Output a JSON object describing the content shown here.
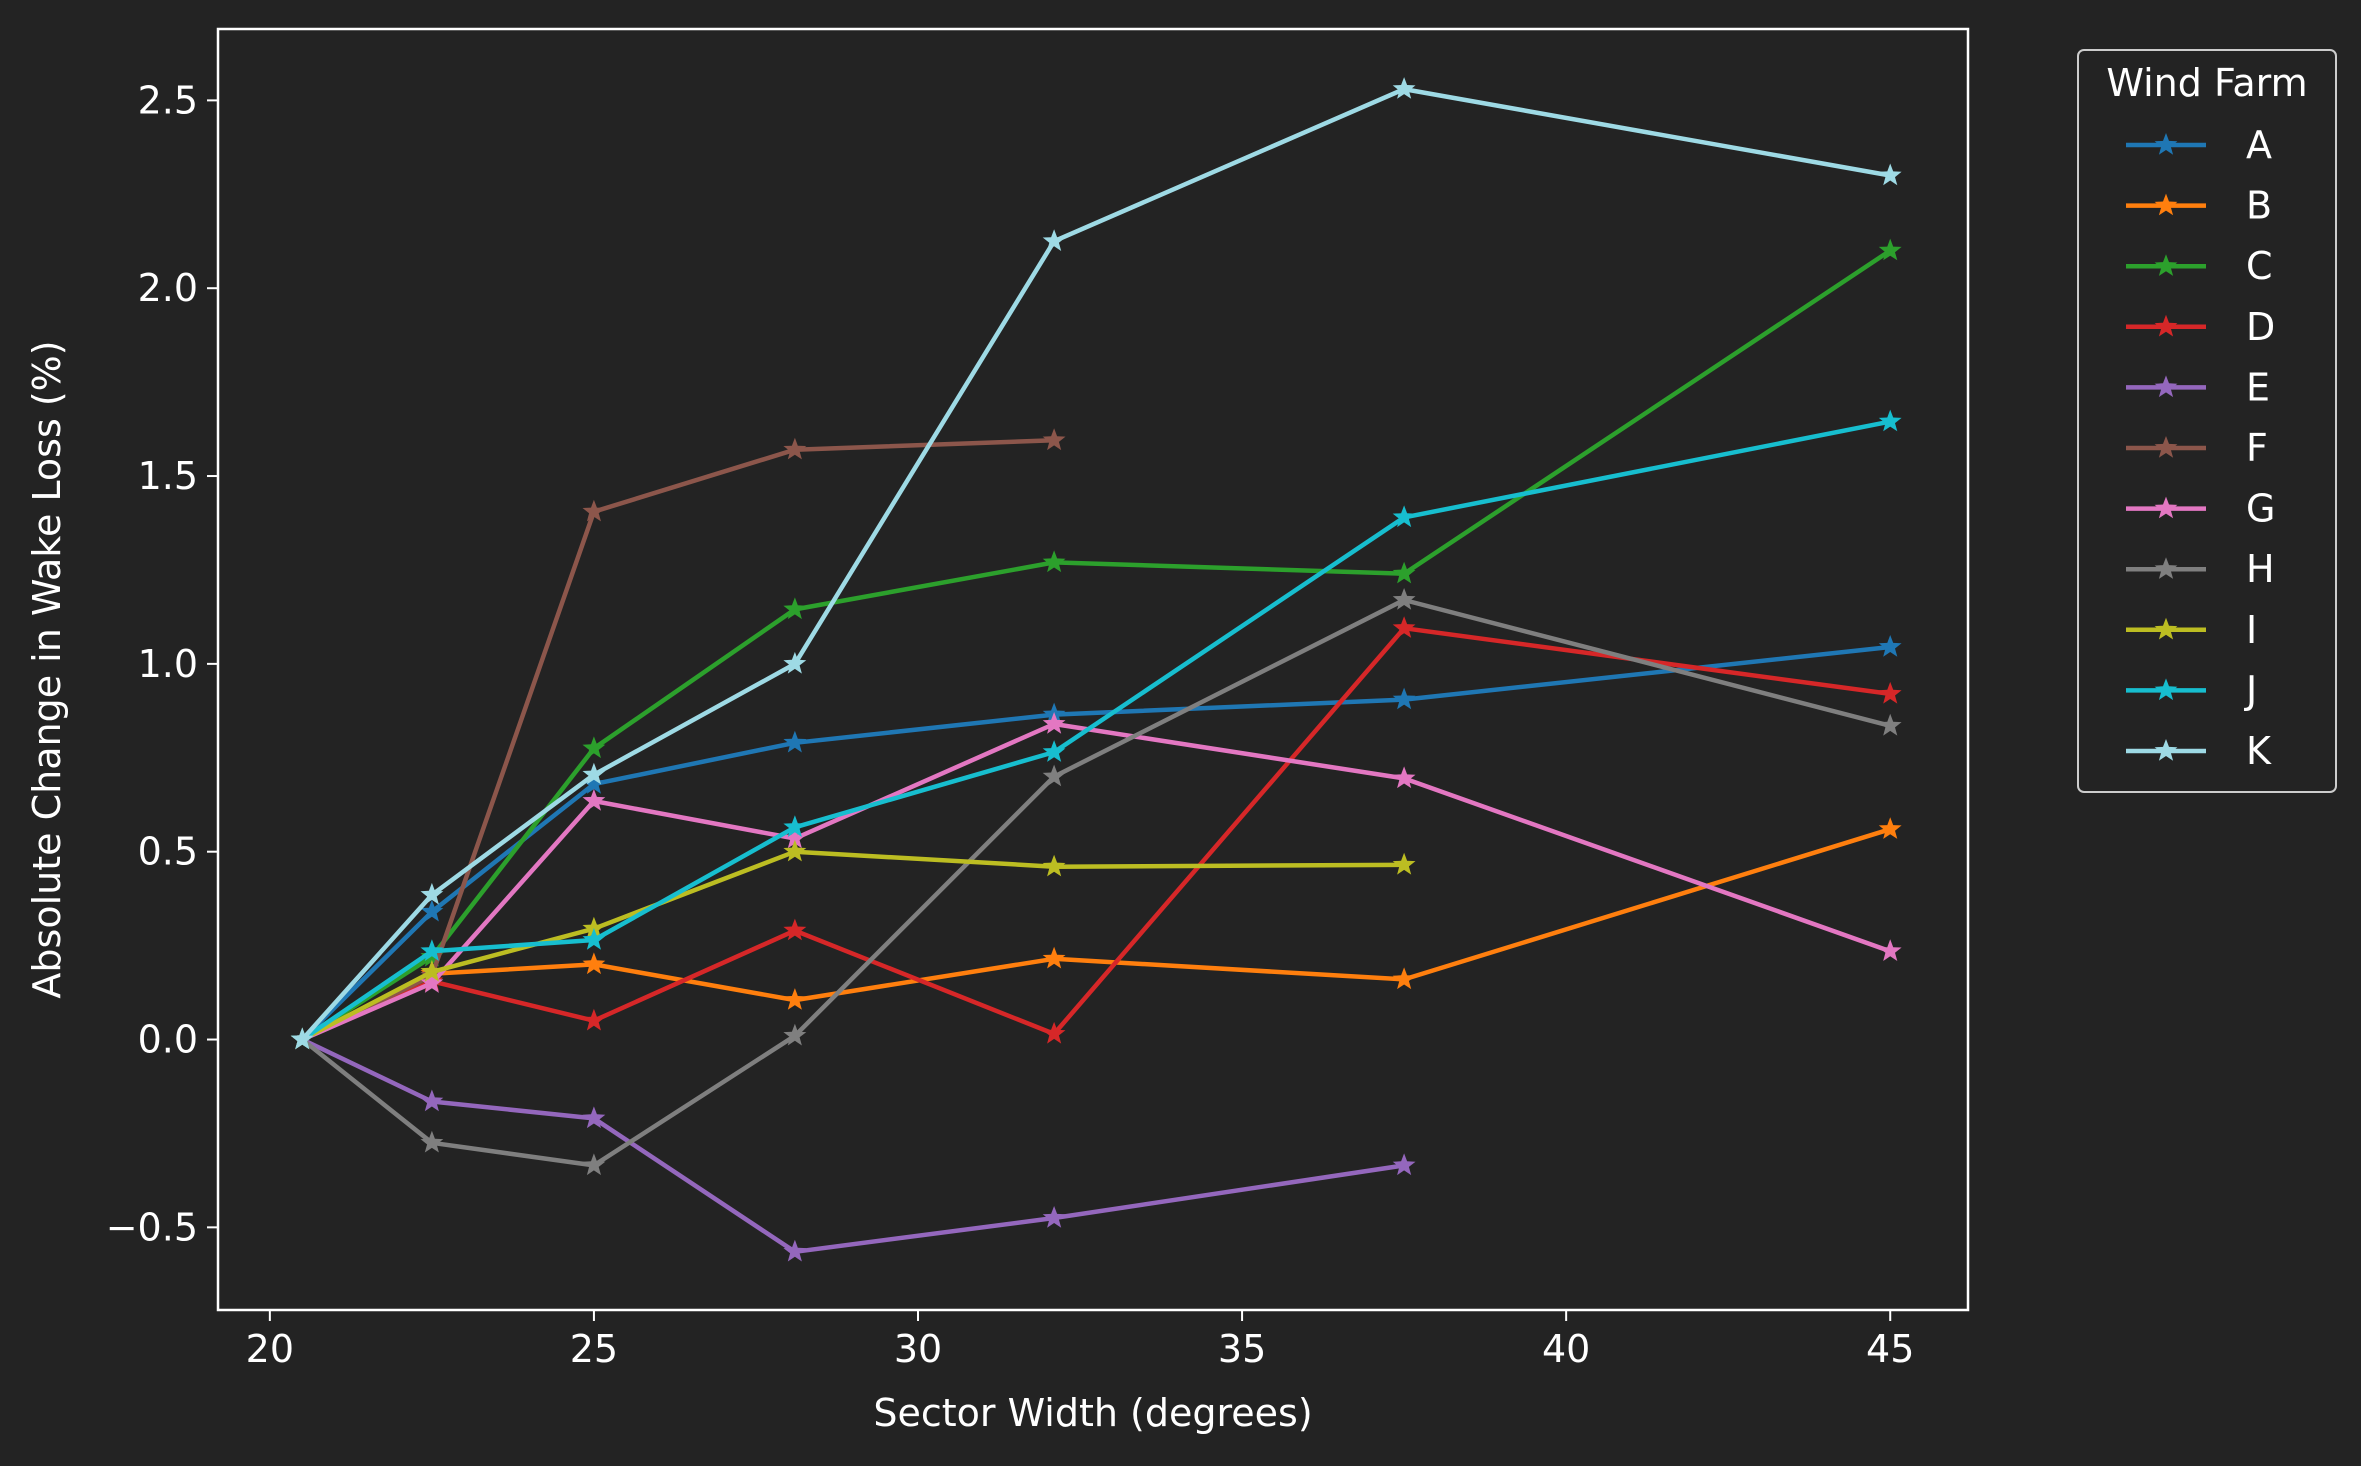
{
  "chart_data": {
    "type": "line",
    "xlabel": "Sector Width (degrees)",
    "ylabel": "Absolute Change in Wake Loss (%)",
    "xlim": [
      19.2,
      46.2
    ],
    "ylim": [
      -0.72,
      2.69
    ],
    "xticks": [
      20,
      25,
      30,
      35,
      40,
      45
    ],
    "yticks": [
      -0.5,
      0.0,
      0.5,
      1.0,
      1.5,
      2.0,
      2.5
    ],
    "ytick_labels": [
      "−0.5",
      "0.0",
      "0.5",
      "1.0",
      "1.5",
      "2.0",
      "2.5"
    ],
    "xtick_labels": [
      "20",
      "25",
      "30",
      "35",
      "40",
      "45"
    ],
    "grid": false,
    "legend": {
      "title": "Wind Farm",
      "placement": "outside-top-right"
    },
    "marker": "star",
    "background": "#232323",
    "foreground": "#ffffff",
    "series": [
      {
        "name": "A",
        "color": "#1f77b4",
        "x": [
          20.5,
          22.5,
          25.0,
          28.1,
          32.1,
          37.5,
          45.0
        ],
        "y": [
          0.0,
          0.34,
          0.68,
          0.79,
          0.865,
          0.905,
          1.045
        ]
      },
      {
        "name": "B",
        "color": "#ff7f0e",
        "x": [
          20.5,
          22.5,
          25.0,
          28.1,
          32.1,
          37.5,
          45.0
        ],
        "y": [
          0.0,
          0.175,
          0.2,
          0.105,
          0.215,
          0.16,
          0.56
        ]
      },
      {
        "name": "C",
        "color": "#2ca02c",
        "x": [
          20.5,
          22.5,
          25.0,
          28.1,
          32.1,
          37.5,
          45.0
        ],
        "y": [
          0.0,
          0.22,
          0.775,
          1.145,
          1.27,
          1.24,
          2.1
        ]
      },
      {
        "name": "D",
        "color": "#d62728",
        "x": [
          20.5,
          22.5,
          25.0,
          28.1,
          32.1,
          37.5,
          45.0
        ],
        "y": [
          0.0,
          0.155,
          0.05,
          0.29,
          0.015,
          1.095,
          0.92
        ]
      },
      {
        "name": "E",
        "color": "#9467bd",
        "x": [
          20.5,
          22.5,
          25.0,
          28.1,
          32.1,
          37.5
        ],
        "y": [
          0.0,
          -0.165,
          -0.21,
          -0.565,
          -0.475,
          -0.335
        ]
      },
      {
        "name": "F",
        "color": "#8c564b",
        "x": [
          20.5,
          22.5,
          25.0,
          28.1,
          32.1
        ],
        "y": [
          0.0,
          0.17,
          1.405,
          1.57,
          1.595
        ]
      },
      {
        "name": "G",
        "color": "#e377c2",
        "x": [
          20.5,
          22.5,
          25.0,
          28.1,
          32.1,
          37.5,
          45.0
        ],
        "y": [
          0.0,
          0.15,
          0.635,
          0.535,
          0.84,
          0.695,
          0.235
        ]
      },
      {
        "name": "H",
        "color": "#7f7f7f",
        "x": [
          20.5,
          22.5,
          25.0,
          28.1,
          32.1,
          37.5,
          45.0
        ],
        "y": [
          0.0,
          -0.275,
          -0.335,
          0.01,
          0.7,
          1.17,
          0.835
        ]
      },
      {
        "name": "I",
        "color": "#bcbd22",
        "x": [
          20.5,
          22.5,
          25.0,
          28.1,
          32.1,
          37.5
        ],
        "y": [
          0.0,
          0.18,
          0.295,
          0.5,
          0.46,
          0.465
        ]
      },
      {
        "name": "J",
        "color": "#17becf",
        "x": [
          20.5,
          22.5,
          25.0,
          28.1,
          32.1,
          37.5,
          45.0
        ],
        "y": [
          0.0,
          0.235,
          0.265,
          0.565,
          0.765,
          1.39,
          1.645
        ]
      },
      {
        "name": "K",
        "color": "#9edae5",
        "x": [
          20.5,
          22.5,
          25.0,
          28.1,
          32.1,
          37.5,
          45.0
        ],
        "y": [
          0.0,
          0.385,
          0.705,
          1.0,
          2.125,
          2.53,
          2.3
        ]
      }
    ]
  }
}
